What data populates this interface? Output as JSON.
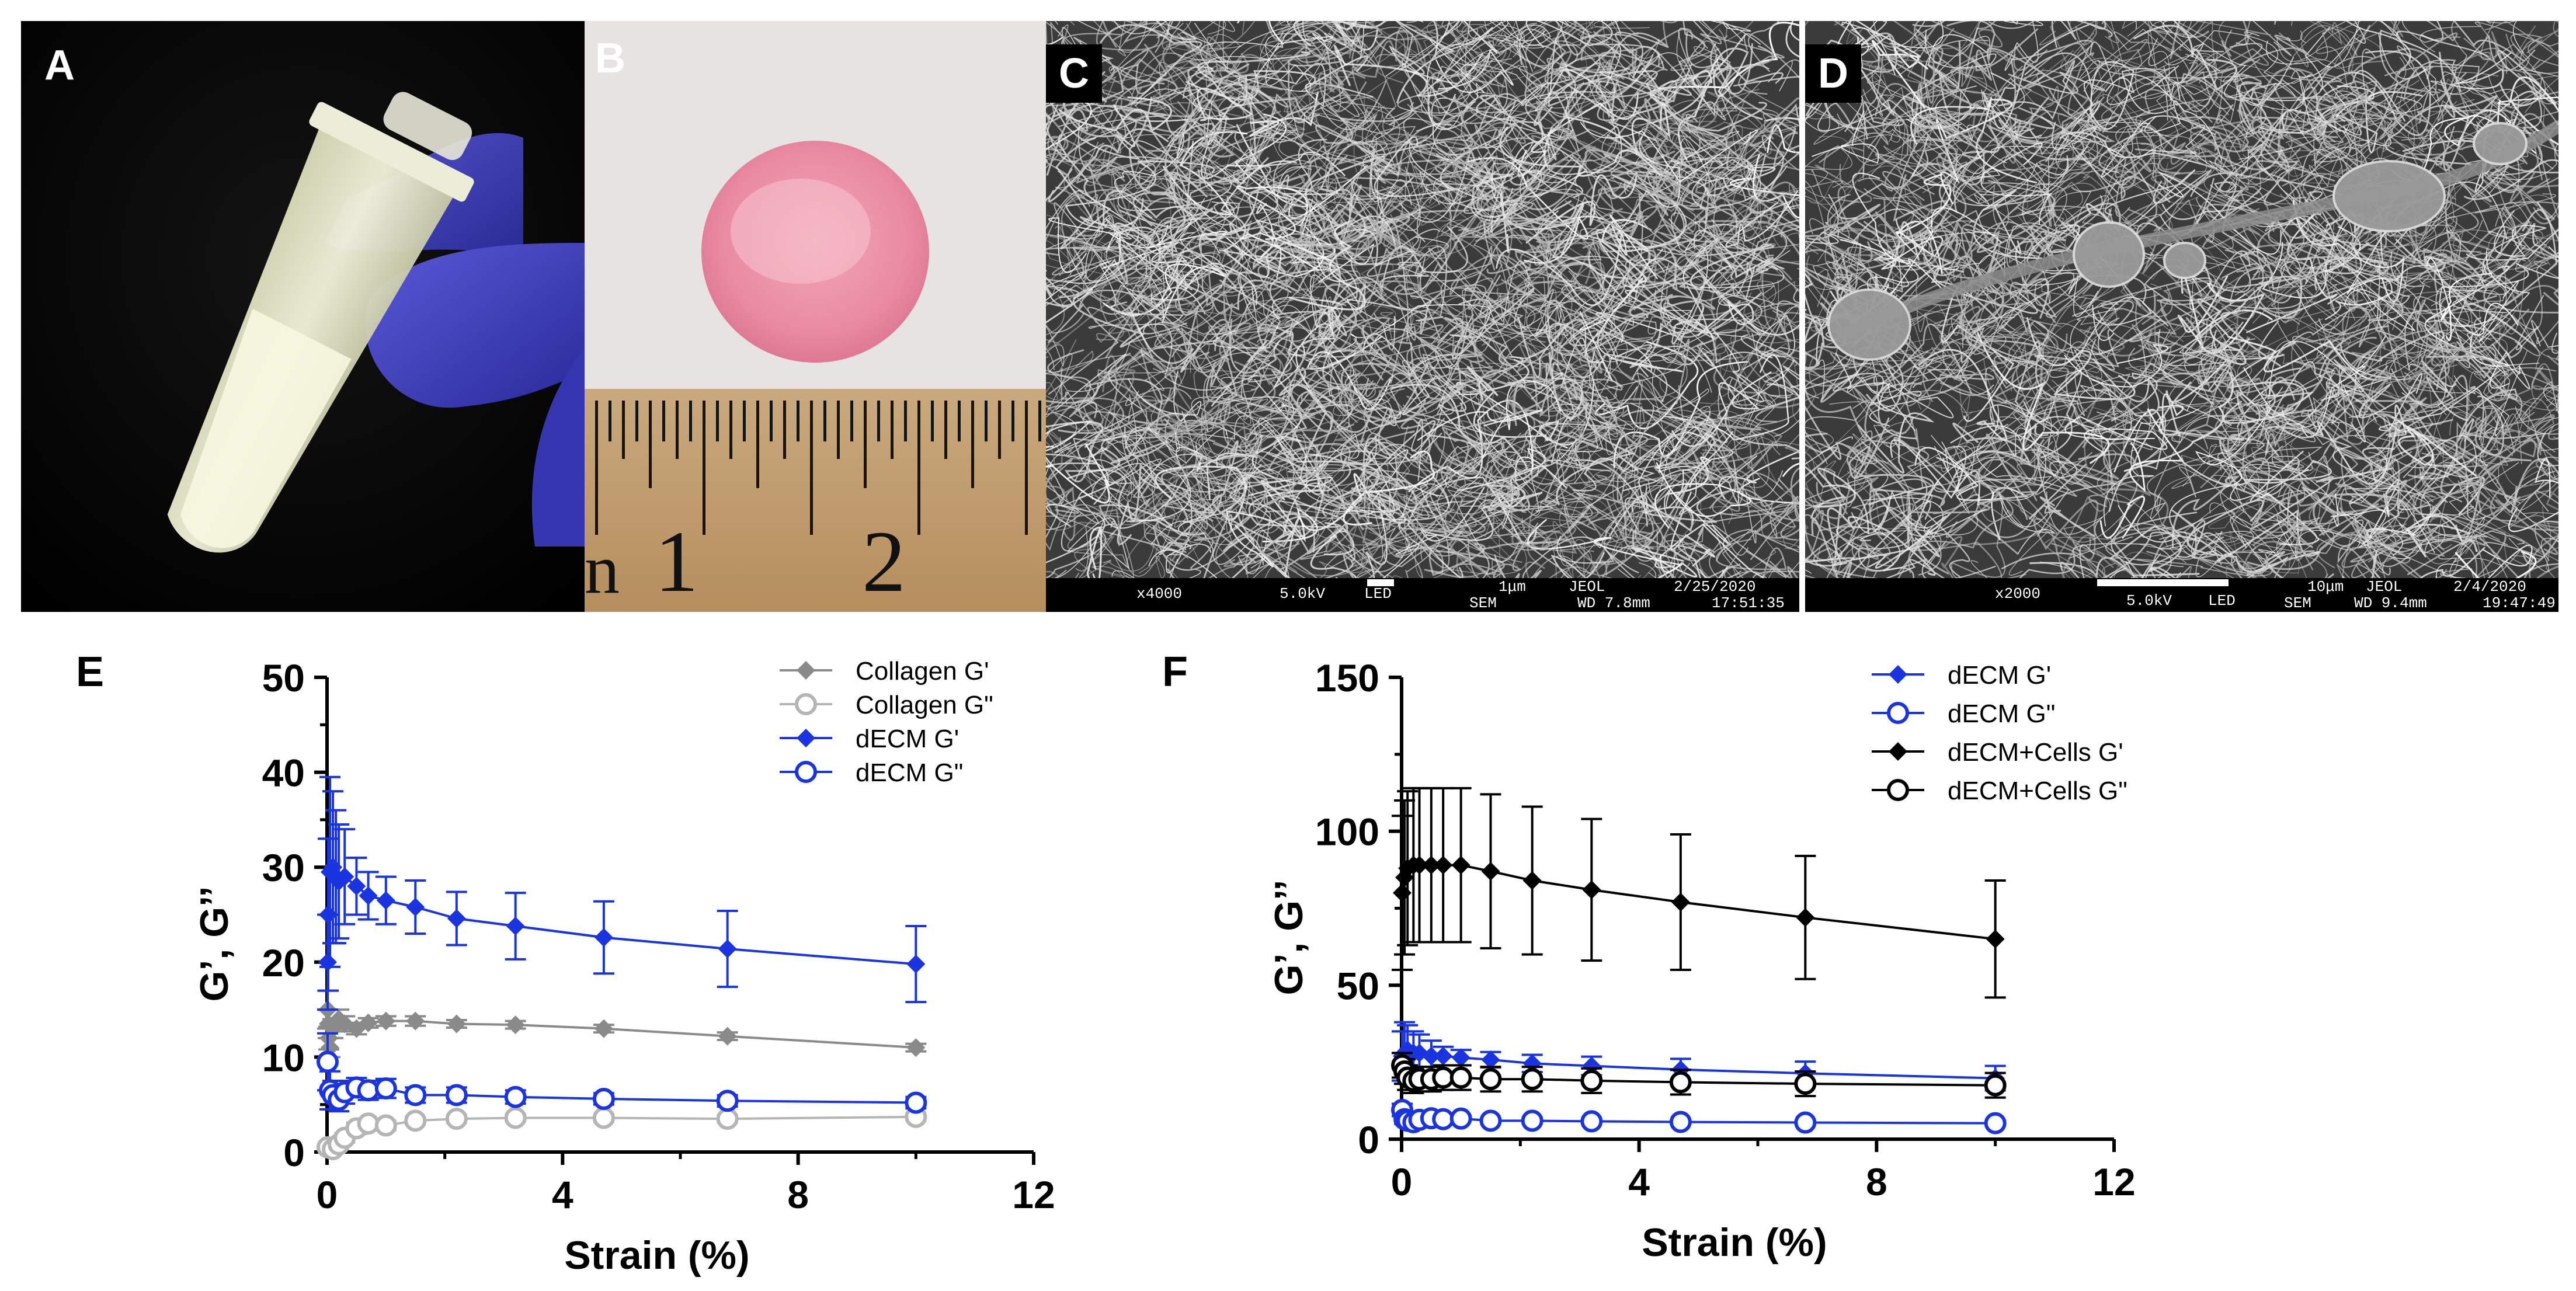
{
  "panels": {
    "a": {
      "label": "A"
    },
    "b": {
      "label": "B",
      "ruler_numbers": [
        "1",
        "2"
      ],
      "ruler_prefix": "n"
    },
    "c": {
      "label": "C",
      "mag": "x4000",
      "kv": "5.0kV",
      "det": "LED",
      "scale": "1μm",
      "maker": "JEOL",
      "date": "2/25/2020",
      "mode": "SEM",
      "wd": "WD 7.8mm",
      "time": "17:51:35"
    },
    "d": {
      "label": "D",
      "mag": "x2000",
      "kv": "5.0kV",
      "det": "LED",
      "scale": "10μm",
      "maker": "JEOL",
      "date": "2/4/2020",
      "mode": "SEM",
      "wd": "WD 9.4mm",
      "time": "19:47:49"
    },
    "e": {
      "label": "E"
    },
    "f": {
      "label": "F"
    }
  },
  "colors": {
    "blue": "#1a35e0",
    "gray": "#8a8a8a",
    "lightgray": "#b5b5b5",
    "black": "#000000"
  },
  "chart_data": [
    {
      "type": "line",
      "panel": "E",
      "xlabel": "Strain (%)",
      "ylabel": "G’, G’’",
      "xlim": [
        0,
        12
      ],
      "ylim": [
        0,
        50
      ],
      "xticks": [
        0,
        4,
        8,
        12
      ],
      "yticks": [
        0,
        10,
        20,
        30,
        40,
        50
      ],
      "legend_position": "top-right",
      "series": [
        {
          "name": "Collagen G'",
          "marker": "diamond-filled",
          "color": "#8a8a8a",
          "x": [
            0.01,
            0.02,
            0.03,
            0.05,
            0.1,
            0.2,
            0.3,
            0.5,
            0.7,
            1.0,
            1.5,
            2.2,
            3.2,
            4.7,
            6.8,
            10.0
          ],
          "y": [
            15,
            13.5,
            12,
            11,
            13,
            14,
            13.5,
            13,
            13.6,
            13.8,
            13.8,
            13.5,
            13.4,
            13.0,
            12.2,
            11.0
          ],
          "err": [
            2,
            1.5,
            1.2,
            1,
            1,
            1,
            0.8,
            0.6,
            0.5,
            0.5,
            0.5,
            0.4,
            0.4,
            0.4,
            0.4,
            0.4
          ]
        },
        {
          "name": "Collagen G\"",
          "marker": "circle-open",
          "color": "#b5b5b5",
          "x": [
            0.01,
            0.1,
            0.2,
            0.3,
            0.5,
            0.7,
            1.0,
            1.5,
            2.2,
            3.2,
            4.7,
            6.8,
            10.0
          ],
          "y": [
            0.5,
            0.3,
            0.8,
            1.5,
            2.5,
            3.0,
            2.8,
            3.3,
            3.5,
            3.6,
            3.6,
            3.5,
            3.7
          ],
          "err": [
            0.3,
            0.2,
            0.4,
            0.5,
            0.6,
            0.5,
            0.5,
            0.4,
            0.4,
            0.4,
            0.4,
            0.4,
            0.4
          ]
        },
        {
          "name": "dECM G'",
          "marker": "diamond-filled",
          "color": "#1a35e0",
          "x": [
            0.01,
            0.02,
            0.05,
            0.1,
            0.15,
            0.2,
            0.3,
            0.5,
            0.7,
            1.0,
            1.5,
            2.2,
            3.2,
            4.7,
            6.8,
            10.0
          ],
          "y": [
            20,
            25,
            29.5,
            30,
            29,
            28.5,
            29,
            28,
            27,
            26.5,
            25.8,
            24.6,
            23.8,
            22.6,
            21.4,
            19.8
          ],
          "err": [
            5,
            8,
            10,
            8,
            7,
            6,
            5,
            3,
            2.5,
            2.5,
            2.8,
            2.8,
            3.5,
            3.8,
            4.0,
            4.0
          ]
        },
        {
          "name": "dECM G\"",
          "marker": "circle-open",
          "color": "#1a35e0",
          "x": [
            0.01,
            0.05,
            0.1,
            0.2,
            0.3,
            0.5,
            0.7,
            1.0,
            1.5,
            2.2,
            3.2,
            4.7,
            6.8,
            10.0
          ],
          "y": [
            9.5,
            6.5,
            6.0,
            5.5,
            6.3,
            6.8,
            6.5,
            6.7,
            6.0,
            6.0,
            5.8,
            5.6,
            5.4,
            5.2
          ],
          "err": [
            3,
            2,
            1.5,
            1.2,
            1.2,
            1.0,
            1.0,
            1.0,
            0.8,
            0.8,
            0.7,
            0.6,
            0.6,
            0.6
          ]
        }
      ]
    },
    {
      "type": "line",
      "panel": "F",
      "xlabel": "Strain (%)",
      "ylabel": "G’, G’’",
      "xlim": [
        0,
        12
      ],
      "ylim": [
        0,
        150
      ],
      "xticks": [
        0,
        4,
        8,
        12
      ],
      "yticks": [
        0,
        50,
        100,
        150
      ],
      "legend_position": "top-right",
      "series": [
        {
          "name": "dECM G'",
          "marker": "diamond-filled",
          "color": "#1a35e0",
          "x": [
            0.01,
            0.05,
            0.1,
            0.2,
            0.3,
            0.5,
            0.7,
            1.0,
            1.5,
            2.2,
            3.2,
            4.7,
            6.8,
            10.0
          ],
          "y": [
            27,
            28,
            29,
            28,
            28,
            27,
            27,
            26.5,
            25.8,
            24.6,
            23.8,
            22.6,
            21.4,
            19.8
          ],
          "err": [
            8,
            10,
            8,
            7,
            6,
            5,
            3,
            2.5,
            2.5,
            2.8,
            3.0,
            3.5,
            3.8,
            4.0
          ]
        },
        {
          "name": "dECM G\"",
          "marker": "circle-open",
          "color": "#1a35e0",
          "x": [
            0.01,
            0.05,
            0.1,
            0.2,
            0.3,
            0.5,
            0.7,
            1.0,
            1.5,
            2.2,
            3.2,
            4.7,
            6.8,
            10.0
          ],
          "y": [
            9.5,
            6.5,
            6.0,
            5.5,
            6.3,
            6.8,
            6.5,
            6.7,
            6.0,
            6.0,
            5.8,
            5.6,
            5.4,
            5.2
          ],
          "err": [
            2,
            1.5,
            1.2,
            1,
            1,
            1,
            1,
            1,
            0.8,
            0.8,
            0.7,
            0.6,
            0.6,
            0.6
          ]
        },
        {
          "name": "dECM+Cells G'",
          "marker": "diamond-filled",
          "color": "#000000",
          "x": [
            0.01,
            0.05,
            0.1,
            0.2,
            0.3,
            0.5,
            0.7,
            1.0,
            1.5,
            2.2,
            3.2,
            4.7,
            6.8,
            10.0
          ],
          "y": [
            80,
            85,
            88,
            89,
            89,
            89,
            89,
            89,
            87,
            84,
            81,
            77,
            72,
            65
          ],
          "err": [
            25,
            25,
            25,
            25,
            25,
            25,
            25,
            25,
            25,
            24,
            23,
            22,
            20,
            19
          ]
        },
        {
          "name": "dECM+Cells G\"",
          "marker": "circle-open",
          "color": "#000000",
          "x": [
            0.01,
            0.05,
            0.1,
            0.2,
            0.3,
            0.5,
            0.7,
            1.0,
            1.5,
            2.2,
            3.2,
            4.7,
            6.8,
            10.0
          ],
          "y": [
            24,
            22,
            20,
            19,
            19.5,
            19.5,
            20,
            20,
            19.5,
            19.5,
            19,
            18.5,
            18,
            17.5
          ],
          "err": [
            4,
            4,
            4,
            4,
            4,
            4,
            4,
            4,
            4,
            4,
            4,
            4,
            4,
            4
          ]
        }
      ]
    }
  ]
}
